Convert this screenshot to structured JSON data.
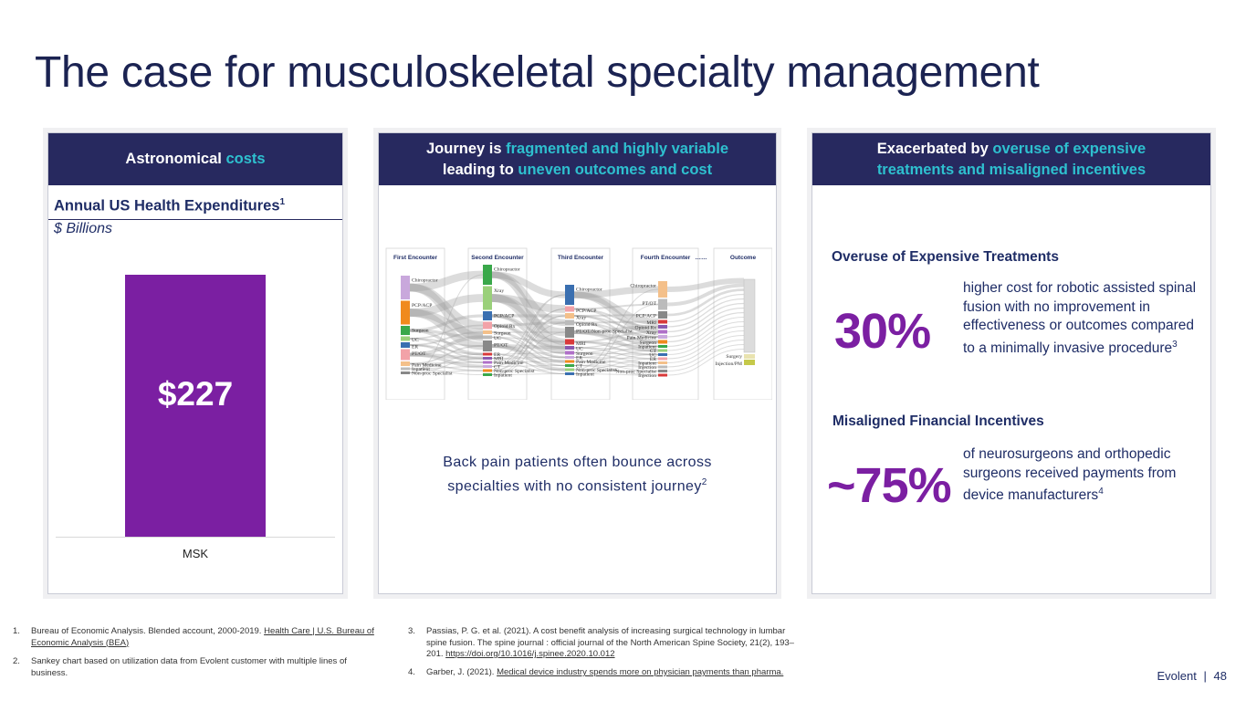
{
  "title": "The case for musculoskeletal specialty management",
  "panel1": {
    "header_plain": "Astronomical ",
    "header_accent": "costs",
    "chart_title": "Annual US Health Expenditures",
    "chart_title_sup": "1",
    "units": "$ Billions",
    "bar_label": "$227"
  },
  "chart_data": {
    "type": "bar",
    "categories": [
      "MSK"
    ],
    "values": [
      227
    ],
    "title": "Annual US Health Expenditures",
    "ylabel": "$ Billions",
    "ylim": [
      0,
      267
    ],
    "data_labels": [
      "$227"
    ],
    "bar_color": "#7b1fa2"
  },
  "panel2": {
    "header_l1_plain": "Journey is ",
    "header_l1_accent": "fragmented and highly variable",
    "header_l2_plain": "leading to ",
    "header_l2_accent": "uneven outcomes and cost",
    "sankey": {
      "stages": [
        "First Encounter",
        "Second Encounter",
        "Third Encounter",
        "Fourth Encounter",
        "……",
        "Outcome"
      ],
      "col1": [
        "Chiropractor",
        "PCP/ACP",
        "Surgeon",
        "UC",
        "ER",
        "PT/OT",
        "Pain Medicine",
        "Inpatient",
        "Non-proc Specialist"
      ],
      "col2": [
        "Chiropractor",
        "Xray",
        "PCP/ACP",
        "Opioid Rx",
        "Surgeon",
        "UC",
        "PT/OT",
        "ER",
        "MRI",
        "Pain Medicine",
        "CT",
        "Non-proc Specialist",
        "Inpatient"
      ],
      "col3": [
        "Chiropractor",
        "PCP/ACP",
        "Xray",
        "Opioid Rx",
        "PT/OT/Non-proc Specialist",
        "MRI",
        "UC",
        "Surgeon",
        "ER",
        "Pain Medicine",
        "CT",
        "Non-proc Specialist",
        "Inpatient"
      ],
      "col4": [
        "Chiropractor",
        "PT/OT",
        "PCP/ACP",
        "MRI",
        "Opioid Rx",
        "Xray",
        "Pain Medicine",
        "Surgeon",
        "Inpatient",
        "CT",
        "UC",
        "ER",
        "Inpatient",
        "Injection",
        "Non-proc Specialist",
        "Injection"
      ],
      "outcome": [
        "Surgery",
        "Injection/PM"
      ]
    },
    "caption_l1": "Back pain patients often bounce across",
    "caption_l2": "specialties with no consistent journey",
    "caption_sup": "2"
  },
  "panel3": {
    "header_l1_plain": "Exacerbated by ",
    "header_l1_accent": "overuse of expensive",
    "header_l2_accent": "treatments and misaligned incentives",
    "section1_title": "Overuse of Expensive Treatments",
    "stat1_value": "30%",
    "stat1_desc": "higher cost for robotic assisted spinal fusion with no improvement in effectiveness or outcomes compared to a minimally invasive procedure",
    "stat1_sup": "3",
    "section2_title": "Misaligned Financial Incentives",
    "stat2_value": "~75%",
    "stat2_desc": "of neurosurgeons and orthopedic surgeons received payments from device manufacturers",
    "stat2_sup": "4"
  },
  "footnotes": [
    {
      "num": "1.",
      "text": "Bureau of Economic Analysis. Blended account, 2000-2019. ",
      "link": "Health Care | U.S. Bureau of Economic Analysis (BEA)",
      "after": ""
    },
    {
      "num": "2.",
      "text": "Sankey chart based on utilization data from Evolent customer with multiple lines of business.",
      "link": "",
      "after": ""
    },
    {
      "num": "3.",
      "text": "Passias, P. G. et al. (2021). A cost benefit analysis of increasing surgical technology in lumbar spine fusion. The spine journal : official journal of the North American Spine Society, 21(2), 193–201. ",
      "link": "https://doi.org/10.1016/j.spinee.2020.10.012",
      "after": ""
    },
    {
      "num": "4.",
      "text": "Garber, J. (2021). ",
      "link": "Medical device industry spends more on physician payments than pharma.",
      "after": ""
    }
  ],
  "footer": {
    "brand": "Evolent",
    "sep": "|",
    "page": "48"
  }
}
